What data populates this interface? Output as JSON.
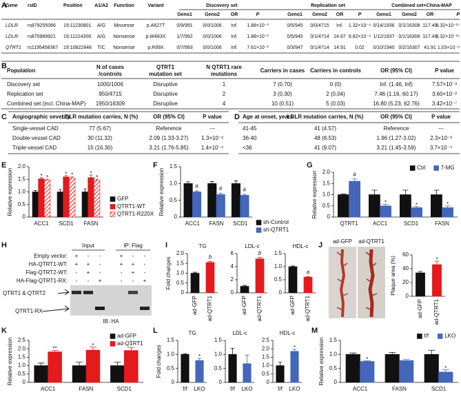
{
  "tables": [
    {
      "panel": "A",
      "groups": [
        "Discovery set",
        "Replication set",
        "Combined set+China-MAP"
      ],
      "header": [
        "Gene",
        "rsID",
        "Position",
        "A1/A2",
        "Function",
        "Variant",
        "Geno1",
        "Geno2",
        "OR",
        "P",
        "Geno1",
        "Geno2",
        "OR",
        "P",
        "Geno1",
        "Geno2",
        "OR",
        "P"
      ],
      "rows": [
        [
          "LDLR",
          "rs879255066",
          "19:11230801",
          "A/G",
          "Missense",
          "p.A627T",
          "0/9/991",
          "0/0/1006",
          "Inf.",
          "1.88×10⁻³",
          "0/5/945",
          "0/0/4715",
          "Inf.",
          "1.32×10⁻⁴",
          "0/14/1936",
          "0/1/16308",
          "117.49",
          "3.32×10⁻¹⁵"
        ],
        [
          "LDLR",
          "rs875989921",
          "19:11224300",
          "A/G",
          "Nonsense",
          "p.W483X",
          "1/7/992",
          "0/0/1006",
          "Inf.",
          "1.88×10⁻³",
          "0/5/945",
          "0/1/4714",
          "24.87",
          "6.82×10⁻⁴",
          "1/12/1937",
          "0/1/16308",
          "117.49",
          "3.32×10⁻¹⁵"
        ],
        [
          "QTRT1",
          "rs1195458367",
          "19:10822848",
          "T/C",
          "Nonsense",
          "p.R99X",
          "0/7/993",
          "0/0/1006",
          "Inf.",
          "7.61×10⁻³",
          "0/3/947",
          "0/1/4714",
          "14.91",
          "0.02",
          "0/10/1940",
          "0/2/16307",
          "41.91",
          "1.03×10⁻⁸"
        ]
      ]
    },
    {
      "panel": "B",
      "header": [
        [
          "Population"
        ],
        [
          "N of cases",
          "/controls"
        ],
        [
          "QTRT1",
          "mutation set"
        ],
        [
          "N QTRT1 rare",
          "mutations"
        ],
        [
          "Carriers in cases"
        ],
        [
          "Carriers in controls"
        ],
        [
          "OR (95% CI)"
        ],
        [
          "P value"
        ]
      ],
      "rows": [
        [
          "Discovery set",
          "1000/1006",
          "Disruptive",
          "1",
          "7 (0.70)",
          "0 (0)",
          "Inf. (1.46, Inf)",
          "7.57×10⁻³"
        ],
        [
          "Replication set",
          "950/4715",
          "Disruptive",
          "2",
          "3 (0.30)",
          "2 (0.04)",
          "7.46 (1.16, 60.17)",
          "3.60×10⁻²"
        ],
        [
          "Combined set (incl. China-MAP)",
          "1950/16309",
          "Disruptive",
          "4",
          "10 (0.51)",
          "5 (0.03)",
          "16.80 (5.23, 62.76)",
          "3.42×10⁻⁷"
        ]
      ]
    },
    {
      "panel": "C",
      "header": [
        "Angiographic severity",
        "LDLR mutation carries, N (%)",
        "OR (95% CI)",
        "P value"
      ],
      "rows": [
        [
          "Single-vessel CAD",
          "77 (5.67)",
          "Reference",
          "---"
        ],
        [
          "Double-vessel CAD",
          "30 (11.32)",
          "2.09 (1.33-3.27)",
          "1.3×10⁻³"
        ],
        [
          "Triple-vessel CAD",
          "15 (16.30)",
          "3.21 (1.76-5.85)",
          "1.4×10⁻⁴"
        ]
      ]
    },
    {
      "panel": "D",
      "header": [
        "Age at onset, years",
        "LDLR mutation carries, N (%)",
        "OR (95% CI)",
        "P value"
      ],
      "rows": [
        [
          "41-45",
          "41 (4.57)",
          "Reference",
          "---"
        ],
        [
          "36-40",
          "48 (8.53)",
          "1.96 (1.27-3.02)",
          "2.3×10⁻³"
        ],
        [
          "<36",
          "41 (9.07)",
          "3.21 (1.45-3.59)",
          "3.7×10⁻⁴"
        ]
      ]
    }
  ],
  "blot": {
    "panel": "H",
    "groups": [
      "Input",
      "IP: Flag"
    ],
    "rows": [
      {
        "label": "Empty vector:",
        "signs": [
          "+",
          "-",
          "-",
          "+",
          "-",
          "-"
        ]
      },
      {
        "label": "HA-QTRT1-WT:",
        "signs": [
          "+",
          "+",
          "-",
          "+",
          "+",
          "-"
        ]
      },
      {
        "label": "Flag-QTRT2-WT:",
        "signs": [
          "-",
          "+",
          "-",
          "-",
          "+",
          "-"
        ]
      },
      {
        "label": "HA-Flag-QTRT1-RX:",
        "signs": [
          "-",
          "-",
          "+",
          "-",
          "-",
          "+"
        ]
      }
    ],
    "bands": [
      "QTRT1 & QTRT2",
      "QTRT1-RX"
    ],
    "antibody": "IB: HA"
  },
  "photos": {
    "panel": "J",
    "labels": [
      "ad-GFP",
      "ad-QTRT1"
    ]
  },
  "chart_data": [
    {
      "type": "bar",
      "panel": "E",
      "y_label": "Relative expression",
      "categories": [
        "ACC1",
        "SCD1",
        "FASN"
      ],
      "ylim": [
        0,
        2
      ],
      "yticks": [
        0,
        0.5,
        {
          "value": 1,
          "label": "1.0"
        },
        1.5,
        {
          "value": 2,
          "label": "2.0"
        }
      ],
      "legend": "right",
      "series": [
        {
          "name": "GFP",
          "color": "#111111",
          "values": [
            1,
            1,
            1
          ],
          "errors": [
            0.06,
            0.1,
            0.12
          ]
        },
        {
          "name": "QTRT1-WT",
          "color": "#e41a1c",
          "values": [
            1.52,
            1.6,
            1.57
          ],
          "errors": [
            0.05,
            0.05,
            0.1
          ],
          "annotations": [
            "*",
            "*",
            "*"
          ]
        },
        {
          "name": "QTRT1-R220X",
          "color": "#e41a1c",
          "hatch": true,
          "values": [
            1.47,
            1.55,
            1.47
          ],
          "errors": [
            0.04,
            0.05,
            0.04
          ],
          "annotations": [
            "*",
            "*",
            "*"
          ]
        }
      ]
    },
    {
      "type": "bar",
      "panel": "F",
      "y_label": "Relative expression",
      "categories": [
        "ACC1",
        "FASN",
        "SCD1"
      ],
      "ylim": [
        0,
        1.5
      ],
      "yticks": [
        0,
        0.5,
        {
          "value": 1,
          "label": "1.0"
        },
        1.5
      ],
      "legend": "lower right",
      "series": [
        {
          "name": "sh-Control",
          "color": "#111111",
          "values": [
            1,
            1,
            1
          ],
          "errors": [
            0.05,
            0.06,
            0.08
          ]
        },
        {
          "name": "sh-QTRT1",
          "color": "#4466bb",
          "values": [
            0.75,
            0.67,
            0.65
          ],
          "errors": [
            0.03,
            0.04,
            0.03
          ],
          "annotations": [
            "#",
            "#",
            "#"
          ]
        }
      ]
    },
    {
      "type": "bar",
      "panel": "G",
      "y_label": "Relative expression",
      "categories": [
        "QTRT1",
        "ACC1",
        "SCD1",
        "FASN"
      ],
      "ylim": [
        0,
        2
      ],
      "yticks": [
        0,
        0.5,
        {
          "value": 1,
          "label": "1.0"
        },
        1.5,
        {
          "value": 2,
          "label": "2.0"
        }
      ],
      "legend": "top",
      "series": [
        {
          "name": "Ctrl",
          "color": "#111111",
          "values": [
            1,
            1,
            1,
            1
          ],
          "errors": [
            0.03,
            0.2,
            0.2,
            0.2
          ]
        },
        {
          "name": "7-MG",
          "color": "#4466bb",
          "values": [
            1.6,
            0.5,
            0.42,
            0.42
          ],
          "errors": [
            0.1,
            0.07,
            0.05,
            0.08
          ],
          "annotations": [
            "#",
            "*",
            "*",
            "*"
          ]
        }
      ]
    },
    {
      "type": "bar",
      "panel": "I",
      "title": "TG",
      "y_label": "Fold changes",
      "categories": [
        "ad-GFP",
        "ad-QTRT1"
      ],
      "ylim": [
        0,
        2
      ],
      "yticks": [
        0,
        0.5,
        {
          "value": 1,
          "label": "1.0"
        },
        1.5,
        {
          "value": 2,
          "label": "2.0"
        }
      ],
      "colors": [
        "#111111",
        "#e41a1c"
      ],
      "values": [
        1,
        1.55
      ],
      "errors": [
        0.05,
        0.05
      ],
      "annotations": [
        null,
        "b"
      ]
    },
    {
      "type": "bar",
      "title": "LDL-c",
      "categories": [
        "ad-GFP",
        "ad-QTRT1"
      ],
      "ylim": [
        0,
        6
      ],
      "yticks": [
        0,
        2,
        4,
        6
      ],
      "colors": [
        "#111111",
        "#e41a1c"
      ],
      "values": [
        1,
        5.2
      ],
      "errors": [
        0.15,
        0.2
      ],
      "annotations": [
        null,
        "b"
      ]
    },
    {
      "type": "bar",
      "title": "HDL-c",
      "categories": [
        "ad-GFP",
        "ad-QTRT1"
      ],
      "ylim": [
        0,
        1.5
      ],
      "yticks": [
        0,
        0.5,
        {
          "value": 1,
          "label": "1.0"
        },
        1.5
      ],
      "colors": [
        "#111111",
        "#e41a1c"
      ],
      "values": [
        1,
        0.6
      ],
      "errors": [
        0.03,
        0.02
      ],
      "annotations": [
        null,
        "a"
      ]
    },
    {
      "type": "bar",
      "y_label": "Plaque area (%)",
      "categories": [
        "ad-GFP",
        "ad-QTRT1"
      ],
      "ylim": [
        0,
        60
      ],
      "yticks": [
        0,
        20,
        40,
        60
      ],
      "colors": [
        "#111111",
        "#e41a1c"
      ],
      "values": [
        34,
        46
      ],
      "errors": [
        2,
        5
      ],
      "annotations": [
        null,
        "*"
      ]
    },
    {
      "type": "bar",
      "panel": "K",
      "y_label": "Relative expression",
      "categories": [
        "ACC1",
        "FASN",
        "SCD1"
      ],
      "ylim": [
        0,
        2.5
      ],
      "yticks": [
        0,
        0.5,
        {
          "value": 1,
          "label": "1.0"
        },
        1.5,
        {
          "value": 2,
          "label": "2.0"
        },
        2.5
      ],
      "legend": "upper right",
      "series": [
        {
          "name": "ad-GFP",
          "color": "#111111",
          "values": [
            1,
            1,
            1
          ],
          "errors": [
            0.15,
            0.2,
            0.2
          ]
        },
        {
          "name": "ad-QTRT1",
          "color": "#e41a1c",
          "values": [
            1.82,
            1.92,
            1.9
          ],
          "errors": [
            0.08,
            0.18,
            0.18
          ],
          "annotations": [
            "**",
            "*",
            "*"
          ]
        }
      ]
    },
    {
      "type": "bar",
      "panel": "L",
      "title": "TG",
      "y_label": "Fold changes",
      "categories": [
        "f/f",
        "LKO"
      ],
      "ylim": [
        0,
        1.5
      ],
      "yticks": [
        0,
        0.5,
        {
          "value": 1,
          "label": "1.0"
        },
        1.5
      ],
      "colors": [
        "#111111",
        "#4466bb"
      ],
      "values": [
        1,
        0.78
      ],
      "errors": [
        0.02,
        0.08
      ],
      "annotations": [
        null,
        "*"
      ]
    },
    {
      "type": "bar",
      "title": "LDL-c",
      "categories": [
        "f/f",
        "LKO"
      ],
      "ylim": [
        0,
        1.5
      ],
      "yticks": [
        0,
        0.5,
        {
          "value": 1,
          "label": "1.0"
        },
        1.5
      ],
      "colors": [
        "#111111",
        "#4466bb"
      ],
      "values": [
        1,
        0.67
      ],
      "errors": [
        0.22,
        0.3
      ]
    },
    {
      "type": "bar",
      "title": "HDL-c",
      "categories": [
        "f/f",
        "LKO"
      ],
      "ylim": [
        0,
        2.5
      ],
      "yticks": [
        0,
        0.5,
        {
          "value": 1,
          "label": "1.0"
        },
        1.5,
        {
          "value": 2,
          "label": "2.0"
        },
        2.5
      ],
      "colors": [
        "#111111",
        "#4466bb"
      ],
      "values": [
        1,
        1.85
      ],
      "errors": [
        0.2,
        0.12
      ],
      "annotations": [
        null,
        "*"
      ]
    },
    {
      "type": "bar",
      "panel": "M",
      "y_label": "Relative expression",
      "categories": [
        "ACC1",
        "FASN",
        "SCD1"
      ],
      "ylim": [
        0,
        1.5
      ],
      "yticks": [
        0,
        0.5,
        {
          "value": 1,
          "label": "1.0"
        },
        1.5
      ],
      "legend": "top",
      "series": [
        {
          "name": "f/f",
          "color": "#111111",
          "values": [
            1,
            1,
            1
          ],
          "errors": [
            0.05,
            0.07,
            0.15
          ]
        },
        {
          "name": "LKO",
          "color": "#4466bb",
          "values": [
            0.75,
            0.78,
            0.37
          ],
          "errors": [
            0.02,
            0.04,
            0.08
          ],
          "annotations": [
            "*",
            null,
            "*"
          ]
        }
      ]
    }
  ]
}
